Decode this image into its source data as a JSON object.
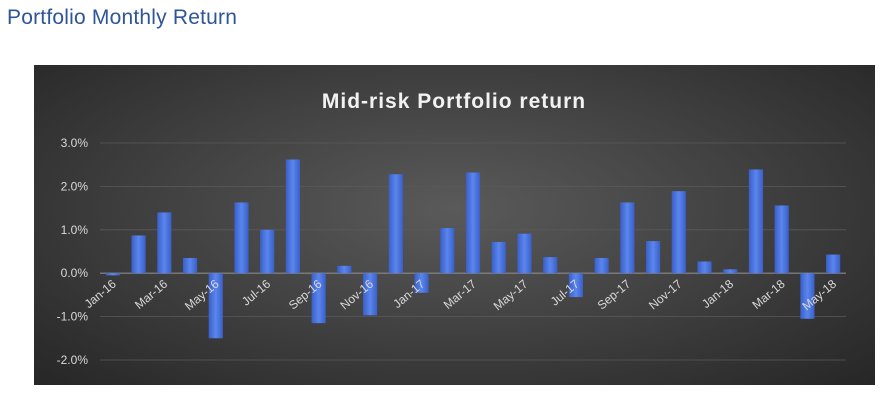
{
  "page": {
    "title": "Portfolio Monthly Return"
  },
  "chart_data": {
    "type": "bar",
    "title": "Mid-risk Portfolio return",
    "xlabel": "",
    "ylabel": "",
    "ylim": [
      -0.02,
      0.03
    ],
    "yticks": [
      0.03,
      0.02,
      0.01,
      0.0,
      -0.01,
      -0.02
    ],
    "ytick_labels": [
      "3.0%",
      "2.0%",
      "1.0%",
      "0.0%",
      "-1.0%",
      "-2.0%"
    ],
    "grid": true,
    "legend": "none",
    "bar_color": "#4a74e0",
    "categories": [
      "Jan-16",
      "Feb-16",
      "Mar-16",
      "Apr-16",
      "May-16",
      "Jun-16",
      "Jul-16",
      "Aug-16",
      "Sep-16",
      "Oct-16",
      "Nov-16",
      "Dec-16",
      "Jan-17",
      "Feb-17",
      "Mar-17",
      "Apr-17",
      "May-17",
      "Jun-17",
      "Jul-17",
      "Aug-17",
      "Sep-17",
      "Oct-17",
      "Nov-17",
      "Dec-17",
      "Jan-18",
      "Feb-18",
      "Mar-18",
      "Apr-18",
      "May-18"
    ],
    "xtick_labels": [
      "Jan-16",
      "",
      "Mar-16",
      "",
      "May-16",
      "",
      "Jul-16",
      "",
      "Sep-16",
      "",
      "Nov-16",
      "",
      "Jan-17",
      "",
      "Mar-17",
      "",
      "May-17",
      "",
      "Jul-17",
      "",
      "Sep-17",
      "",
      "Nov-17",
      "",
      "Jan-18",
      "",
      "Mar-18",
      "",
      "May-18"
    ],
    "values": [
      -0.0005,
      0.0087,
      0.014,
      0.0035,
      -0.015,
      0.0163,
      0.01,
      0.0262,
      -0.0115,
      0.0017,
      -0.0097,
      0.0228,
      -0.0045,
      0.0104,
      0.0232,
      0.0072,
      0.0091,
      0.0037,
      -0.0055,
      0.0035,
      0.0163,
      0.0074,
      0.0189,
      0.0027,
      0.0009,
      0.0239,
      0.0156,
      -0.0105,
      0.0043
    ]
  }
}
